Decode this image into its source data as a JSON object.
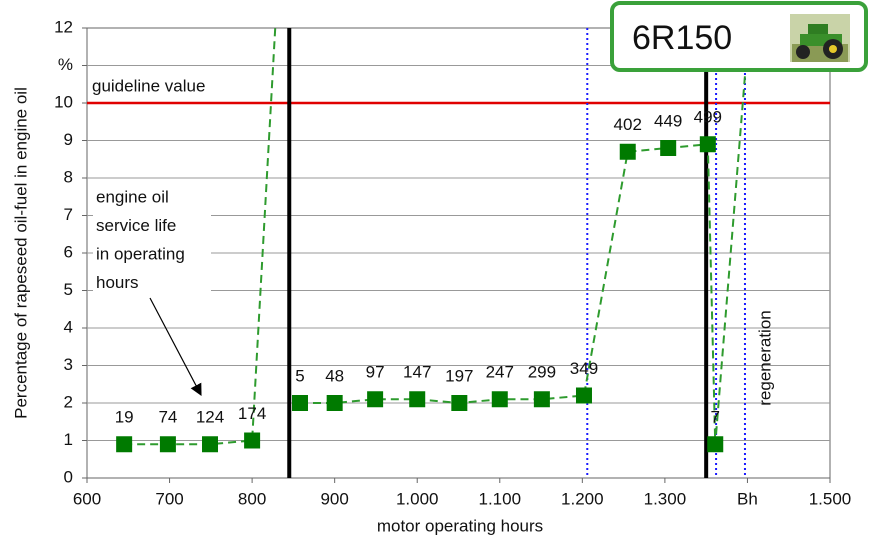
{
  "chart_data": {
    "type": "scatter",
    "x_label": "motor operating hours",
    "y_label": "Percentage of rapeseed oil-fuel in engine oil",
    "xlim": [
      600,
      1500
    ],
    "ylim": [
      0,
      12
    ],
    "xticks": [
      600,
      700,
      800,
      900,
      {
        "value": 1000,
        "label": "1.000"
      },
      {
        "value": 1100,
        "label": "1.100"
      },
      {
        "value": 1200,
        "label": "1.200"
      },
      {
        "value": 1300,
        "label": "1.300"
      },
      {
        "value": 1400,
        "label": "Bh"
      },
      {
        "value": 1500,
        "label": "1.500"
      }
    ],
    "yticks": [
      0,
      1,
      2,
      3,
      4,
      5,
      6,
      7,
      8,
      9,
      10,
      {
        "value": 11,
        "label": "%"
      },
      12
    ],
    "grid": true,
    "series": [
      {
        "color": "#007a00",
        "x": [
          645,
          698,
          749,
          800,
          858,
          900,
          949,
          1000,
          1051,
          1100,
          1151,
          1202,
          1255,
          1304,
          1352,
          1361
        ],
        "values": [
          0.9,
          0.9,
          0.9,
          1.0,
          2.0,
          2.0,
          2.1,
          2.1,
          2.0,
          2.1,
          2.1,
          2.2,
          8.7,
          8.8,
          8.9,
          0.9
        ],
        "labels": [
          19,
          74,
          124,
          174,
          5,
          48,
          97,
          147,
          197,
          247,
          299,
          349,
          402,
          449,
          499,
          7
        ]
      }
    ],
    "trend_line": {
      "color": "#2e9b2e",
      "x": [
        645,
        698,
        749,
        800,
        828,
        null,
        858,
        900,
        949,
        1000,
        1051,
        1100,
        1151,
        1202,
        1255,
        1304,
        1352,
        1361,
        1398
      ],
      "values": [
        0.9,
        0.9,
        0.9,
        1.0,
        12,
        null,
        2.0,
        2.0,
        2.1,
        2.1,
        2.0,
        2.1,
        2.1,
        2.2,
        8.7,
        8.8,
        8.9,
        0.9,
        11
      ]
    },
    "guideline": {
      "value": 10,
      "label": "guideline value",
      "color": "#e00000"
    },
    "black_lines": [
      845,
      1350
    ],
    "blue_lines": [
      1206,
      1362,
      1397
    ],
    "blue_color": "#1a1aff",
    "regeneration_label": "regeneration",
    "annotation": [
      "engine oil",
      "service life",
      "in operating",
      "hours"
    ],
    "badge": "6R150"
  }
}
